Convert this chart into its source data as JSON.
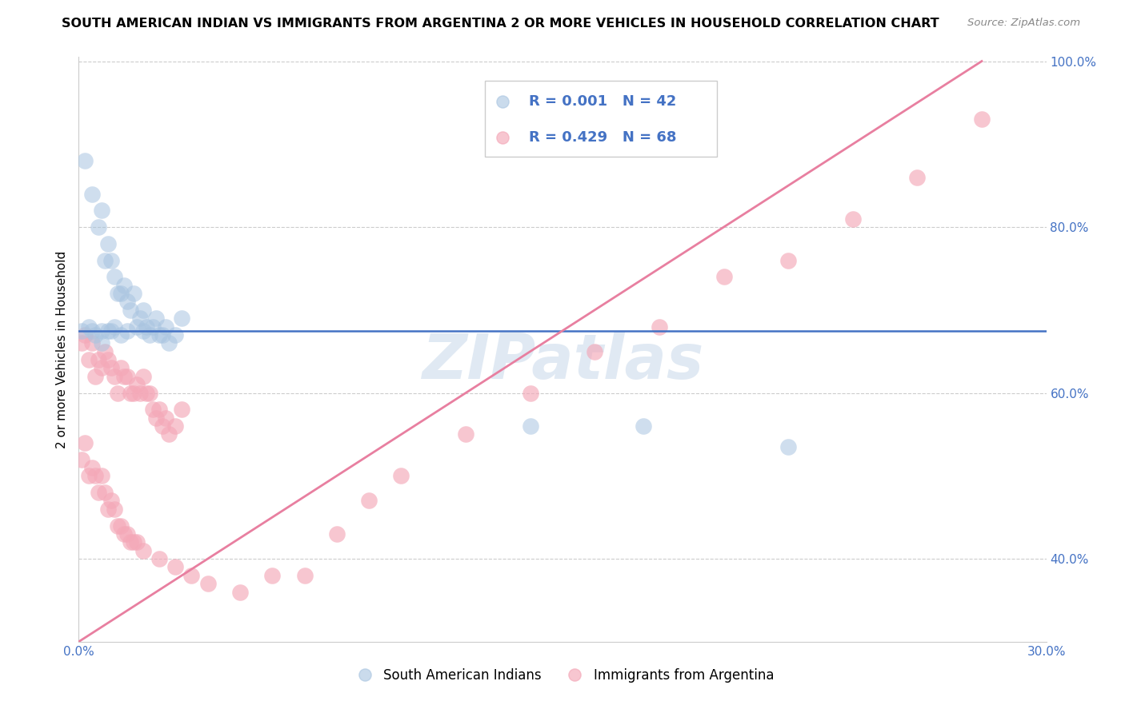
{
  "title": "SOUTH AMERICAN INDIAN VS IMMIGRANTS FROM ARGENTINA 2 OR MORE VEHICLES IN HOUSEHOLD CORRELATION CHART",
  "source": "Source: ZipAtlas.com",
  "ylabel": "2 or more Vehicles in Household",
  "xlim": [
    0.0,
    0.3
  ],
  "ylim": [
    0.3,
    1.005
  ],
  "xticks": [
    0.0,
    0.05,
    0.1,
    0.15,
    0.2,
    0.25,
    0.3
  ],
  "xticklabels": [
    "0.0%",
    "",
    "",
    "",
    "",
    "",
    "30.0%"
  ],
  "yticks_right": [
    0.4,
    0.6,
    0.8,
    1.0
  ],
  "yticklabels_right": [
    "40.0%",
    "60.0%",
    "80.0%",
    "100.0%"
  ],
  "blue_R": "0.001",
  "blue_N": "42",
  "pink_R": "0.429",
  "pink_N": "68",
  "blue_color": "#a8c4e0",
  "pink_color": "#f4a8b8",
  "blue_line_color": "#4472c4",
  "pink_line_color": "#e87fa0",
  "legend1_label": "South American Indians",
  "legend2_label": "Immigrants from Argentina",
  "watermark": "ZIPatlas",
  "blue_hline_y": 0.675,
  "pink_line_x": [
    0.0,
    0.28
  ],
  "pink_line_y": [
    0.3,
    1.0
  ],
  "blue_points_x": [
    0.002,
    0.004,
    0.006,
    0.007,
    0.008,
    0.009,
    0.01,
    0.011,
    0.012,
    0.013,
    0.014,
    0.015,
    0.016,
    0.017,
    0.018,
    0.019,
    0.02,
    0.021,
    0.022,
    0.023,
    0.024,
    0.025,
    0.026,
    0.027,
    0.028,
    0.03,
    0.032,
    0.003,
    0.005,
    0.007,
    0.009,
    0.011,
    0.013,
    0.001,
    0.004,
    0.007,
    0.01,
    0.015,
    0.02,
    0.14,
    0.175,
    0.22
  ],
  "blue_points_y": [
    0.88,
    0.84,
    0.8,
    0.82,
    0.76,
    0.78,
    0.76,
    0.74,
    0.72,
    0.72,
    0.73,
    0.71,
    0.7,
    0.72,
    0.68,
    0.69,
    0.7,
    0.68,
    0.67,
    0.68,
    0.69,
    0.67,
    0.67,
    0.68,
    0.66,
    0.67,
    0.69,
    0.68,
    0.67,
    0.66,
    0.675,
    0.68,
    0.67,
    0.675,
    0.675,
    0.675,
    0.675,
    0.675,
    0.675,
    0.56,
    0.56,
    0.535
  ],
  "pink_points_x": [
    0.001,
    0.002,
    0.003,
    0.004,
    0.005,
    0.006,
    0.007,
    0.008,
    0.009,
    0.01,
    0.011,
    0.012,
    0.013,
    0.014,
    0.015,
    0.016,
    0.017,
    0.018,
    0.019,
    0.02,
    0.021,
    0.022,
    0.023,
    0.024,
    0.025,
    0.026,
    0.027,
    0.028,
    0.03,
    0.032,
    0.001,
    0.002,
    0.003,
    0.004,
    0.005,
    0.006,
    0.007,
    0.008,
    0.009,
    0.01,
    0.011,
    0.012,
    0.013,
    0.014,
    0.015,
    0.016,
    0.017,
    0.018,
    0.02,
    0.025,
    0.03,
    0.035,
    0.04,
    0.05,
    0.06,
    0.07,
    0.08,
    0.09,
    0.1,
    0.12,
    0.14,
    0.16,
    0.18,
    0.2,
    0.22,
    0.24,
    0.26,
    0.28
  ],
  "pink_points_y": [
    0.66,
    0.67,
    0.64,
    0.66,
    0.62,
    0.64,
    0.63,
    0.65,
    0.64,
    0.63,
    0.62,
    0.6,
    0.63,
    0.62,
    0.62,
    0.6,
    0.6,
    0.61,
    0.6,
    0.62,
    0.6,
    0.6,
    0.58,
    0.57,
    0.58,
    0.56,
    0.57,
    0.55,
    0.56,
    0.58,
    0.52,
    0.54,
    0.5,
    0.51,
    0.5,
    0.48,
    0.5,
    0.48,
    0.46,
    0.47,
    0.46,
    0.44,
    0.44,
    0.43,
    0.43,
    0.42,
    0.42,
    0.42,
    0.41,
    0.4,
    0.39,
    0.38,
    0.37,
    0.36,
    0.38,
    0.38,
    0.43,
    0.47,
    0.5,
    0.55,
    0.6,
    0.65,
    0.68,
    0.74,
    0.76,
    0.81,
    0.86,
    0.93
  ]
}
